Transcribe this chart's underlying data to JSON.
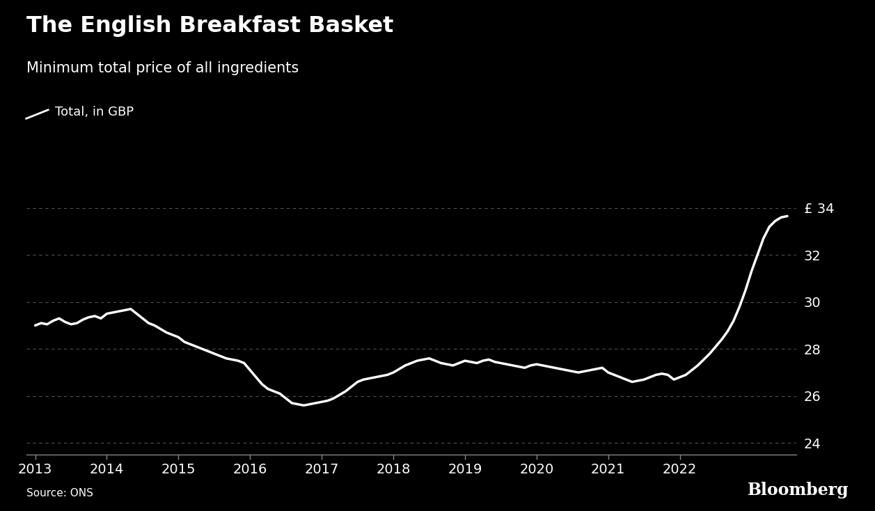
{
  "title": "The English Breakfast Basket",
  "subtitle": "Minimum total price of all ingredients",
  "legend_label": "Total, in GBP",
  "source": "Source: ONS",
  "bloomberg": "Bloomberg",
  "background_color": "#000000",
  "line_color": "#ffffff",
  "text_color": "#ffffff",
  "grid_color": "#666666",
  "axis_color": "#888888",
  "ylim": [
    23.5,
    34.8
  ],
  "yticks": [
    24,
    26,
    28,
    30,
    32,
    34
  ],
  "ylabel_prefix": "£",
  "title_fontsize": 23,
  "subtitle_fontsize": 15,
  "tick_fontsize": 14,
  "source_fontsize": 11,
  "legend_fontsize": 13,
  "line_width": 2.5,
  "values": [
    29.0,
    29.1,
    29.05,
    29.2,
    29.3,
    29.15,
    29.05,
    29.1,
    29.25,
    29.35,
    29.4,
    29.3,
    29.5,
    29.55,
    29.6,
    29.65,
    29.7,
    29.5,
    29.3,
    29.1,
    29.0,
    28.85,
    28.7,
    28.6,
    28.5,
    28.3,
    28.2,
    28.1,
    28.0,
    27.9,
    27.8,
    27.7,
    27.6,
    27.55,
    27.5,
    27.4,
    27.1,
    26.8,
    26.5,
    26.3,
    26.2,
    26.1,
    25.9,
    25.7,
    25.65,
    25.6,
    25.65,
    25.7,
    25.75,
    25.8,
    25.9,
    26.05,
    26.2,
    26.4,
    26.6,
    26.7,
    26.75,
    26.8,
    26.85,
    26.9,
    27.0,
    27.15,
    27.3,
    27.4,
    27.5,
    27.55,
    27.6,
    27.5,
    27.4,
    27.35,
    27.3,
    27.4,
    27.5,
    27.45,
    27.4,
    27.5,
    27.55,
    27.45,
    27.4,
    27.35,
    27.3,
    27.25,
    27.2,
    27.3,
    27.35,
    27.3,
    27.25,
    27.2,
    27.15,
    27.1,
    27.05,
    27.0,
    27.05,
    27.1,
    27.15,
    27.2,
    27.0,
    26.9,
    26.8,
    26.7,
    26.6,
    26.65,
    26.7,
    26.8,
    26.9,
    26.95,
    26.9,
    26.7,
    26.8,
    26.9,
    27.1,
    27.3,
    27.55,
    27.8,
    28.1,
    28.4,
    28.75,
    29.2,
    29.8,
    30.5,
    31.3,
    32.0,
    32.7,
    33.2,
    33.45,
    33.6,
    33.65
  ],
  "xtick_years": [
    "2013",
    "2014",
    "2015",
    "2016",
    "2017",
    "2018",
    "2019",
    "2020",
    "2021",
    "2022"
  ],
  "xtick_positions": [
    0,
    12,
    24,
    36,
    48,
    60,
    72,
    84,
    96,
    108
  ]
}
